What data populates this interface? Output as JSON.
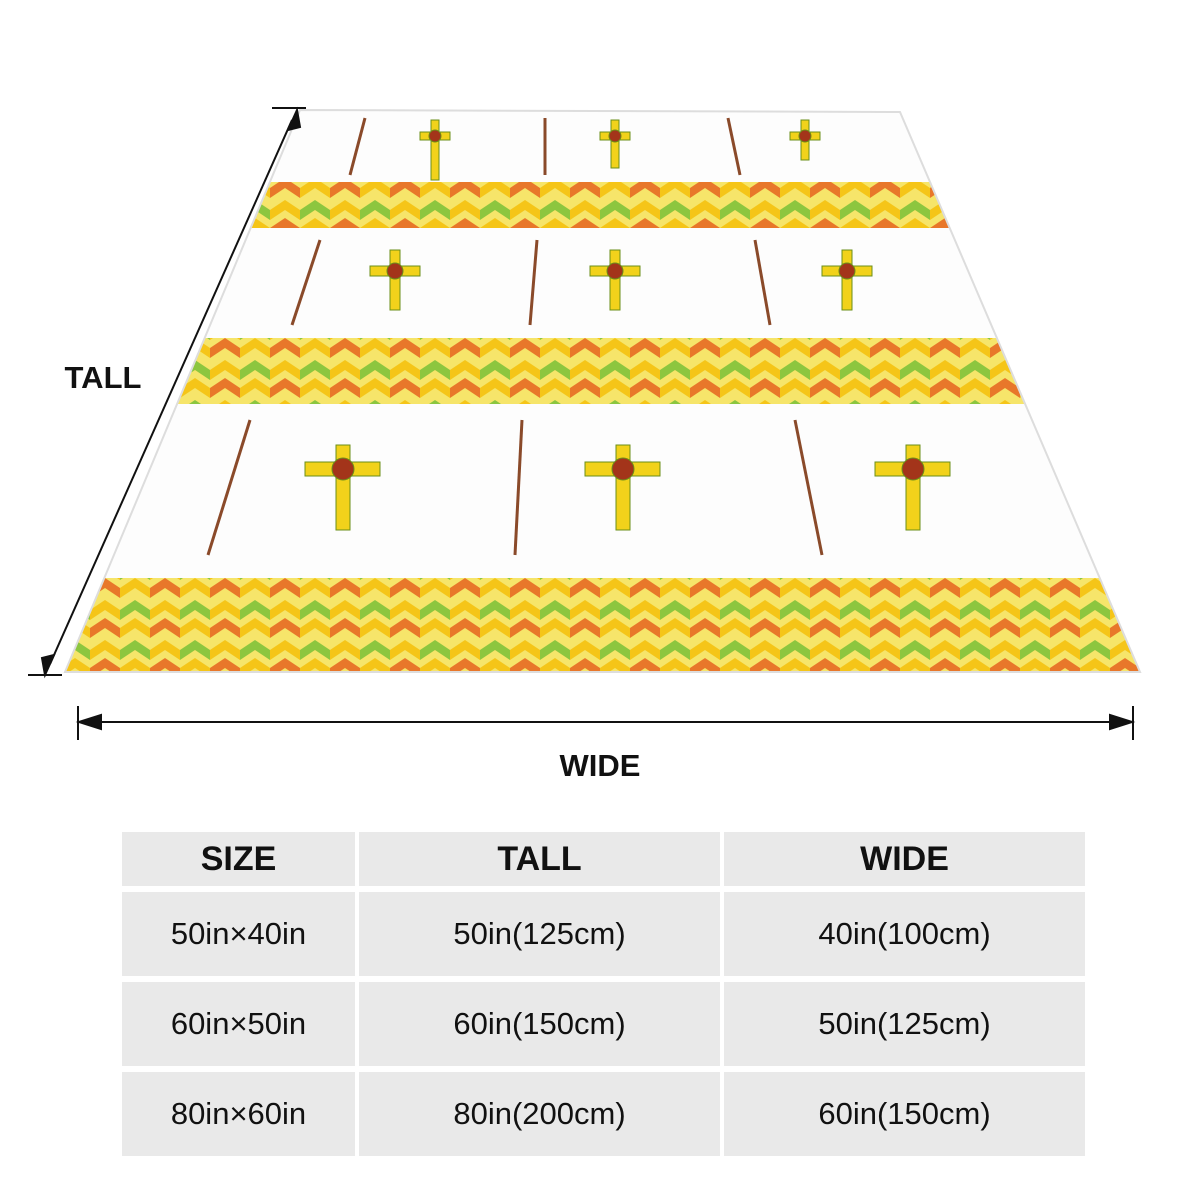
{
  "dimensions": {
    "tall": "TALL",
    "wide": "WIDE"
  },
  "table": {
    "header": [
      "SIZE",
      "TALL",
      "WIDE"
    ],
    "rows": [
      [
        "50in×40in",
        "50in(125cm)",
        "40in(100cm)"
      ],
      [
        "60in×50in",
        "60in(150cm)",
        "50in(125cm)"
      ],
      [
        "80in×60in",
        "80in(200cm)",
        "60in(150cm)"
      ]
    ]
  }
}
